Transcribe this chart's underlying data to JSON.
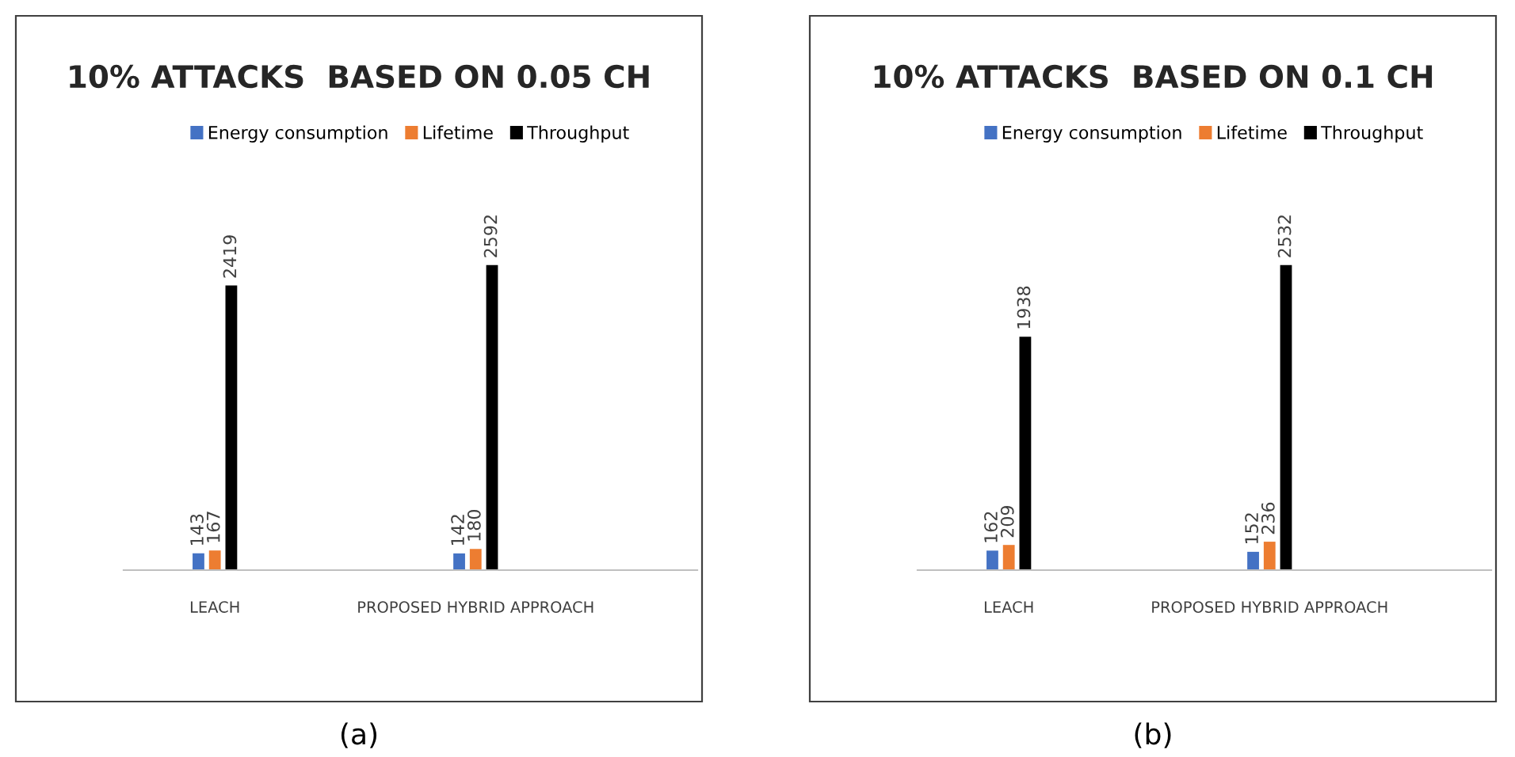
{
  "chart_data": [
    {
      "type": "bar",
      "title": "10% ATTACKS  BASED ON 0.05 CH",
      "categories": [
        "LEACH",
        "PROPOSED HYBRID APPROACH"
      ],
      "series": [
        {
          "name": "Energy consumption",
          "color": "#4472c4",
          "values": [
            143,
            142
          ]
        },
        {
          "name": "Lifetime",
          "color": "#ed7d31",
          "values": [
            167,
            180
          ]
        },
        {
          "name": "Throughput",
          "color": "#000000",
          "values": [
            2419,
            2592
          ]
        }
      ],
      "data_labels": true,
      "legend": "top",
      "grid": false,
      "tick_labels": "x",
      "annotations": [
        "(a)"
      ]
    },
    {
      "type": "bar",
      "title": "10% ATTACKS  BASED ON 0.1 CH",
      "categories": [
        "LEACH",
        "PROPOSED HYBRID APPROACH"
      ],
      "series": [
        {
          "name": "Energy consumption",
          "color": "#4472c4",
          "values": [
            162,
            152
          ]
        },
        {
          "name": "Lifetime",
          "color": "#ed7d31",
          "values": [
            209,
            236
          ]
        },
        {
          "name": "Throughput",
          "color": "#000000",
          "values": [
            1938,
            2532
          ]
        }
      ],
      "data_labels": true,
      "legend": "top",
      "grid": false,
      "tick_labels": "x",
      "annotations": [
        "(b)"
      ]
    }
  ]
}
